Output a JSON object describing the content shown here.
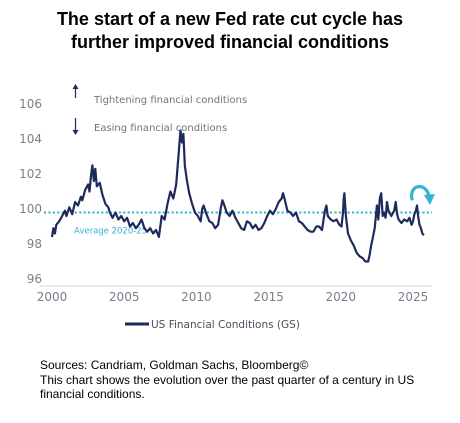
{
  "title_lines": [
    "The start of a new Fed rate cut cycle has",
    "further improved financial conditions"
  ],
  "annotations": {
    "tightening": "Tightening financial conditions",
    "easing": "Easing financial conditions",
    "average_label": "Average 2020-25"
  },
  "sources": {
    "line1": "Sources: Candriam, Goldman Sachs, Bloomberg©",
    "line2": "This chart shows the evolution over the past quarter of a century in US financial conditions."
  },
  "colors": {
    "series": "#1f2a5c",
    "average": "#35b4d2",
    "arrow_highlight": "#35b4d2",
    "axis_text": "#7b7f8c"
  },
  "chart_data": {
    "type": "line",
    "title": "The start of a new Fed rate cut cycle has further improved financial conditions",
    "xlabel": "",
    "ylabel": "",
    "xlim": [
      2000,
      2026
    ],
    "ylim": [
      96,
      107
    ],
    "x_ticks": [
      2000,
      2005,
      2010,
      2015,
      2020,
      2025
    ],
    "y_ticks": [
      96,
      98,
      100,
      102,
      104,
      106
    ],
    "grid": false,
    "legend": "bottom",
    "average": {
      "label": "Average 2020-25",
      "value": 99.8
    },
    "series": [
      {
        "name": "US Financial Conditions (GS)",
        "points": [
          [
            2000.0,
            98.4
          ],
          [
            2000.1,
            98.9
          ],
          [
            2000.2,
            98.6
          ],
          [
            2000.3,
            99.1
          ],
          [
            2000.5,
            99.3
          ],
          [
            2000.7,
            99.6
          ],
          [
            2000.9,
            99.9
          ],
          [
            2001.0,
            99.6
          ],
          [
            2001.2,
            100.1
          ],
          [
            2001.4,
            99.7
          ],
          [
            2001.6,
            100.4
          ],
          [
            2001.8,
            100.2
          ],
          [
            2002.0,
            100.7
          ],
          [
            2002.1,
            100.5
          ],
          [
            2002.3,
            101.1
          ],
          [
            2002.5,
            101.4
          ],
          [
            2002.6,
            101.0
          ],
          [
            2002.7,
            101.9
          ],
          [
            2002.8,
            102.5
          ],
          [
            2002.9,
            101.6
          ],
          [
            2003.0,
            102.3
          ],
          [
            2003.1,
            101.3
          ],
          [
            2003.3,
            101.5
          ],
          [
            2003.5,
            100.8
          ],
          [
            2003.7,
            100.3
          ],
          [
            2003.9,
            100.1
          ],
          [
            2004.0,
            99.8
          ],
          [
            2004.2,
            99.5
          ],
          [
            2004.4,
            99.8
          ],
          [
            2004.6,
            99.4
          ],
          [
            2004.8,
            99.6
          ],
          [
            2005.0,
            99.3
          ],
          [
            2005.2,
            99.5
          ],
          [
            2005.4,
            99.0
          ],
          [
            2005.6,
            99.2
          ],
          [
            2005.8,
            98.9
          ],
          [
            2006.0,
            99.1
          ],
          [
            2006.2,
            99.4
          ],
          [
            2006.4,
            98.9
          ],
          [
            2006.6,
            98.7
          ],
          [
            2006.8,
            98.9
          ],
          [
            2007.0,
            98.6
          ],
          [
            2007.2,
            98.8
          ],
          [
            2007.4,
            98.4
          ],
          [
            2007.6,
            99.6
          ],
          [
            2007.8,
            99.4
          ],
          [
            2008.0,
            100.3
          ],
          [
            2008.2,
            101.0
          ],
          [
            2008.4,
            100.6
          ],
          [
            2008.6,
            101.4
          ],
          [
            2008.8,
            103.5
          ],
          [
            2008.9,
            104.5
          ],
          [
            2009.0,
            103.8
          ],
          [
            2009.1,
            104.3
          ],
          [
            2009.2,
            102.5
          ],
          [
            2009.35,
            101.6
          ],
          [
            2009.5,
            100.9
          ],
          [
            2009.7,
            100.3
          ],
          [
            2009.9,
            99.8
          ],
          [
            2010.1,
            99.6
          ],
          [
            2010.3,
            99.3
          ],
          [
            2010.4,
            100.0
          ],
          [
            2010.5,
            100.2
          ],
          [
            2010.7,
            99.7
          ],
          [
            2010.9,
            99.3
          ],
          [
            2011.1,
            99.2
          ],
          [
            2011.3,
            98.9
          ],
          [
            2011.5,
            99.1
          ],
          [
            2011.7,
            100.1
          ],
          [
            2011.8,
            100.5
          ],
          [
            2011.9,
            100.3
          ],
          [
            2012.1,
            99.8
          ],
          [
            2012.3,
            99.6
          ],
          [
            2012.5,
            99.9
          ],
          [
            2012.7,
            99.5
          ],
          [
            2012.9,
            99.2
          ],
          [
            2013.1,
            98.9
          ],
          [
            2013.3,
            98.8
          ],
          [
            2013.5,
            99.3
          ],
          [
            2013.7,
            99.2
          ],
          [
            2013.9,
            98.9
          ],
          [
            2014.1,
            99.1
          ],
          [
            2014.3,
            98.8
          ],
          [
            2014.5,
            98.9
          ],
          [
            2014.7,
            99.2
          ],
          [
            2014.9,
            99.6
          ],
          [
            2015.1,
            99.9
          ],
          [
            2015.3,
            99.7
          ],
          [
            2015.5,
            100.0
          ],
          [
            2015.7,
            100.4
          ],
          [
            2015.9,
            100.6
          ],
          [
            2016.0,
            100.9
          ],
          [
            2016.1,
            100.6
          ],
          [
            2016.3,
            99.9
          ],
          [
            2016.5,
            99.8
          ],
          [
            2016.7,
            99.6
          ],
          [
            2016.9,
            99.8
          ],
          [
            2017.1,
            99.3
          ],
          [
            2017.3,
            99.2
          ],
          [
            2017.5,
            99.0
          ],
          [
            2017.7,
            98.8
          ],
          [
            2017.9,
            98.7
          ],
          [
            2018.1,
            98.7
          ],
          [
            2018.3,
            99.0
          ],
          [
            2018.5,
            99.0
          ],
          [
            2018.7,
            98.8
          ],
          [
            2018.9,
            99.9
          ],
          [
            2019.0,
            100.2
          ],
          [
            2019.1,
            99.6
          ],
          [
            2019.3,
            99.4
          ],
          [
            2019.5,
            99.3
          ],
          [
            2019.7,
            99.4
          ],
          [
            2019.9,
            99.1
          ],
          [
            2020.05,
            99.0
          ],
          [
            2020.15,
            99.8
          ],
          [
            2020.2,
            100.6
          ],
          [
            2020.25,
            100.9
          ],
          [
            2020.35,
            99.6
          ],
          [
            2020.5,
            98.6
          ],
          [
            2020.7,
            98.2
          ],
          [
            2020.9,
            97.9
          ],
          [
            2021.1,
            97.5
          ],
          [
            2021.3,
            97.3
          ],
          [
            2021.5,
            97.2
          ],
          [
            2021.7,
            97.0
          ],
          [
            2021.9,
            97.0
          ],
          [
            2022.0,
            97.4
          ],
          [
            2022.1,
            97.9
          ],
          [
            2022.2,
            98.3
          ],
          [
            2022.35,
            98.9
          ],
          [
            2022.5,
            100.2
          ],
          [
            2022.6,
            99.4
          ],
          [
            2022.7,
            100.6
          ],
          [
            2022.8,
            100.9
          ],
          [
            2022.9,
            99.6
          ],
          [
            2023.0,
            99.8
          ],
          [
            2023.1,
            99.5
          ],
          [
            2023.2,
            100.4
          ],
          [
            2023.3,
            99.9
          ],
          [
            2023.5,
            99.6
          ],
          [
            2023.7,
            99.9
          ],
          [
            2023.8,
            100.4
          ],
          [
            2023.9,
            99.7
          ],
          [
            2024.0,
            99.4
          ],
          [
            2024.2,
            99.2
          ],
          [
            2024.4,
            99.4
          ],
          [
            2024.6,
            99.3
          ],
          [
            2024.75,
            99.5
          ],
          [
            2024.9,
            99.1
          ],
          [
            2025.0,
            99.3
          ],
          [
            2025.1,
            99.7
          ],
          [
            2025.2,
            99.9
          ],
          [
            2025.28,
            100.2
          ],
          [
            2025.35,
            99.6
          ],
          [
            2025.45,
            99.1
          ],
          [
            2025.55,
            98.9
          ],
          [
            2025.65,
            98.6
          ],
          [
            2025.75,
            98.5
          ]
        ]
      }
    ]
  }
}
